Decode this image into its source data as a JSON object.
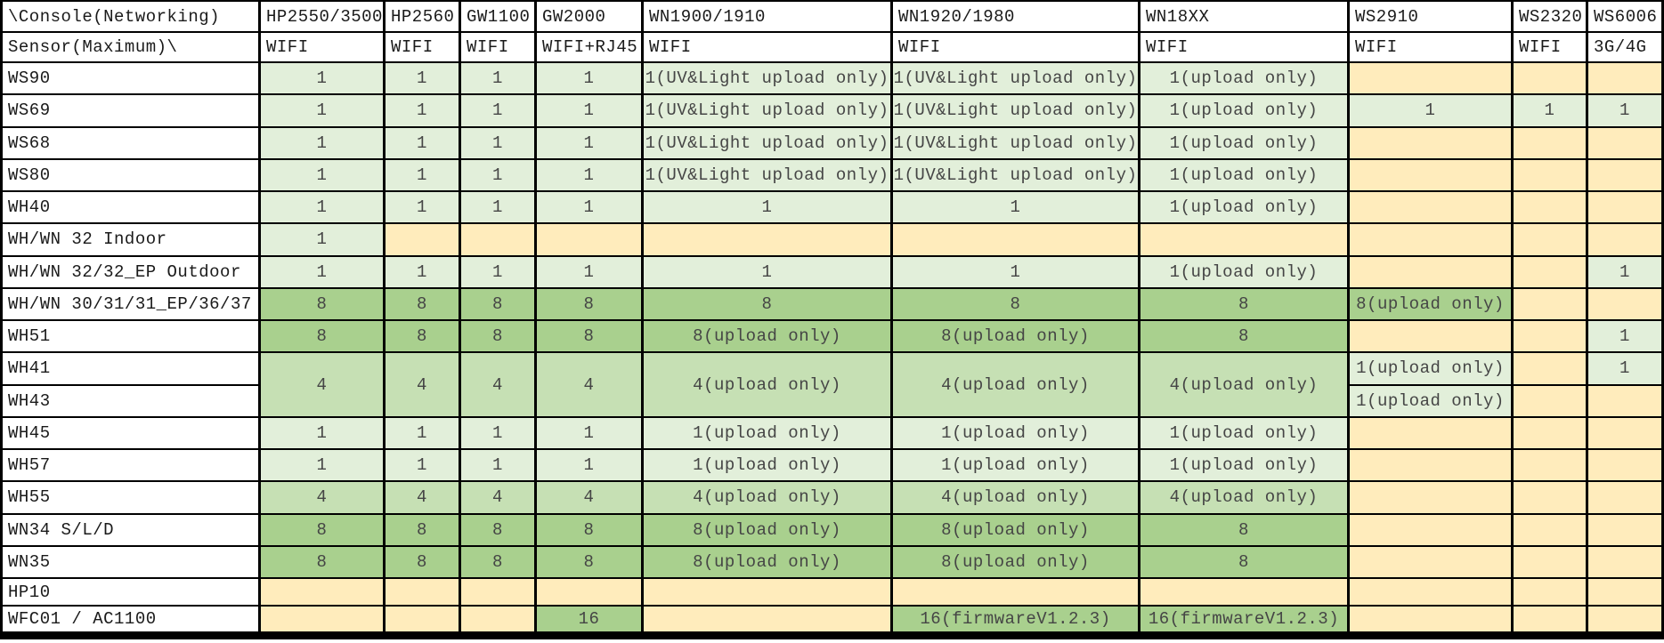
{
  "colors": {
    "g": "#e2efda",
    "m": "#c6e0b4",
    "d": "#a9d08e",
    "y": "#ffecbc",
    "header_bg": "#ffffff",
    "border": "#000000",
    "value_text": "#454545",
    "header_text": "#1a1a1a"
  },
  "table": {
    "corner": {
      "row1": "\\Console(Networking)",
      "row2": "Sensor(Maximum)\\"
    },
    "columns": [
      {
        "label": "HP2550/3500",
        "network": "WIFI"
      },
      {
        "label": "HP2560",
        "network": "WIFI"
      },
      {
        "label": "GW1100",
        "network": "WIFI"
      },
      {
        "label": "GW2000",
        "network": "WIFI+RJ45"
      },
      {
        "label": "WN1900/1910",
        "network": "WIFI"
      },
      {
        "label": "WN1920/1980",
        "network": "WIFI"
      },
      {
        "label": "WN18XX",
        "network": "WIFI"
      },
      {
        "label": "WS2910",
        "network": "WIFI"
      },
      {
        "label": "WS2320",
        "network": "WIFI"
      },
      {
        "label": "WS6006",
        "network": "3G/4G"
      }
    ],
    "rows": [
      {
        "sensor": "WS90",
        "cells": [
          {
            "t": "1",
            "s": "g"
          },
          {
            "t": "1",
            "s": "g"
          },
          {
            "t": "1",
            "s": "g"
          },
          {
            "t": "1",
            "s": "g"
          },
          {
            "t": "1(UV&Light upload only)",
            "s": "g"
          },
          {
            "t": "1(UV&Light upload only)",
            "s": "g"
          },
          {
            "t": "1(upload only)",
            "s": "g"
          },
          {
            "s": "y"
          },
          {
            "s": "y"
          },
          {
            "s": "y"
          }
        ]
      },
      {
        "sensor": "WS69",
        "cells": [
          {
            "t": "1",
            "s": "g"
          },
          {
            "t": "1",
            "s": "g"
          },
          {
            "t": "1",
            "s": "g"
          },
          {
            "t": "1",
            "s": "g"
          },
          {
            "t": "1(UV&Light upload only)",
            "s": "g"
          },
          {
            "t": "1(UV&Light upload only)",
            "s": "g"
          },
          {
            "t": "1(upload only)",
            "s": "g"
          },
          {
            "t": "1",
            "s": "g"
          },
          {
            "t": "1",
            "s": "g"
          },
          {
            "t": "1",
            "s": "g"
          }
        ]
      },
      {
        "sensor": "WS68",
        "cells": [
          {
            "t": "1",
            "s": "g"
          },
          {
            "t": "1",
            "s": "g"
          },
          {
            "t": "1",
            "s": "g"
          },
          {
            "t": "1",
            "s": "g"
          },
          {
            "t": "1(UV&Light upload only)",
            "s": "g"
          },
          {
            "t": "1(UV&Light upload only)",
            "s": "g"
          },
          {
            "t": "1(upload only)",
            "s": "g"
          },
          {
            "s": "y"
          },
          {
            "s": "y"
          },
          {
            "s": "y"
          }
        ]
      },
      {
        "sensor": "WS80",
        "cells": [
          {
            "t": "1",
            "s": "g"
          },
          {
            "t": "1",
            "s": "g"
          },
          {
            "t": "1",
            "s": "g"
          },
          {
            "t": "1",
            "s": "g"
          },
          {
            "t": "1(UV&Light upload only)",
            "s": "g"
          },
          {
            "t": "1(UV&Light upload only)",
            "s": "g"
          },
          {
            "t": "1(upload only)",
            "s": "g"
          },
          {
            "s": "y"
          },
          {
            "s": "y"
          },
          {
            "s": "y"
          }
        ]
      },
      {
        "sensor": "WH40",
        "cells": [
          {
            "t": "1",
            "s": "g"
          },
          {
            "t": "1",
            "s": "g"
          },
          {
            "t": "1",
            "s": "g"
          },
          {
            "t": "1",
            "s": "g"
          },
          {
            "t": "1",
            "s": "g"
          },
          {
            "t": "1",
            "s": "g"
          },
          {
            "t": "1(upload only)",
            "s": "g"
          },
          {
            "s": "y"
          },
          {
            "s": "y"
          },
          {
            "s": "y"
          }
        ]
      },
      {
        "sensor": "WH/WN 32 Indoor",
        "cells": [
          {
            "t": "1",
            "s": "g"
          },
          {
            "s": "y"
          },
          {
            "s": "y"
          },
          {
            "s": "y"
          },
          {
            "s": "y"
          },
          {
            "s": "y"
          },
          {
            "s": "y"
          },
          {
            "s": "y"
          },
          {
            "s": "y"
          },
          {
            "s": "y"
          }
        ]
      },
      {
        "sensor": "WH/WN 32/32_EP Outdoor",
        "cells": [
          {
            "t": "1",
            "s": "g"
          },
          {
            "t": "1",
            "s": "g"
          },
          {
            "t": "1",
            "s": "g"
          },
          {
            "t": "1",
            "s": "g"
          },
          {
            "t": "1",
            "s": "g"
          },
          {
            "t": "1",
            "s": "g"
          },
          {
            "t": "1(upload only)",
            "s": "g"
          },
          {
            "s": "y"
          },
          {
            "s": "y"
          },
          {
            "t": "1",
            "s": "g"
          }
        ]
      },
      {
        "sensor": "WH/WN 30/31/31_EP/36/37",
        "cells": [
          {
            "t": "8",
            "s": "d"
          },
          {
            "t": "8",
            "s": "d"
          },
          {
            "t": "8",
            "s": "d"
          },
          {
            "t": "8",
            "s": "d"
          },
          {
            "t": "8",
            "s": "d"
          },
          {
            "t": "8",
            "s": "d"
          },
          {
            "t": "8",
            "s": "d"
          },
          {
            "t": "8(upload only)",
            "s": "d"
          },
          {
            "s": "y"
          },
          {
            "s": "y"
          }
        ]
      },
      {
        "sensor": "WH51",
        "cells": [
          {
            "t": "8",
            "s": "d"
          },
          {
            "t": "8",
            "s": "d"
          },
          {
            "t": "8",
            "s": "d"
          },
          {
            "t": "8",
            "s": "d"
          },
          {
            "t": "8(upload only)",
            "s": "d"
          },
          {
            "t": "8(upload only)",
            "s": "d"
          },
          {
            "t": "8",
            "s": "d"
          },
          {
            "s": "y"
          },
          {
            "s": "y"
          },
          {
            "t": "1",
            "s": "g"
          }
        ]
      },
      {
        "sensor": "WH41",
        "cells": [
          {
            "t": "4",
            "s": "m",
            "rs": 2
          },
          {
            "t": "4",
            "s": "m",
            "rs": 2
          },
          {
            "t": "4",
            "s": "m",
            "rs": 2
          },
          {
            "t": "4",
            "s": "m",
            "rs": 2
          },
          {
            "t": "4(upload only)",
            "s": "m",
            "rs": 2
          },
          {
            "t": "4(upload only)",
            "s": "m",
            "rs": 2
          },
          {
            "t": "4(upload only)",
            "s": "m",
            "rs": 2
          },
          {
            "t": "1(upload only)",
            "s": "g"
          },
          {
            "s": "y"
          },
          {
            "t": "1",
            "s": "g"
          }
        ]
      },
      {
        "sensor": "WH43",
        "cells": [
          {
            "t": "1(upload only)",
            "s": "g"
          },
          {
            "s": "y"
          },
          {
            "s": "y"
          }
        ]
      },
      {
        "sensor": "WH45",
        "cells": [
          {
            "t": "1",
            "s": "g"
          },
          {
            "t": "1",
            "s": "g"
          },
          {
            "t": "1",
            "s": "g"
          },
          {
            "t": "1",
            "s": "g"
          },
          {
            "t": "1(upload only)",
            "s": "g"
          },
          {
            "t": "1(upload only)",
            "s": "g"
          },
          {
            "t": "1(upload only)",
            "s": "g"
          },
          {
            "s": "y"
          },
          {
            "s": "y"
          },
          {
            "s": "y"
          }
        ]
      },
      {
        "sensor": "WH57",
        "cells": [
          {
            "t": "1",
            "s": "g"
          },
          {
            "t": "1",
            "s": "g"
          },
          {
            "t": "1",
            "s": "g"
          },
          {
            "t": "1",
            "s": "g"
          },
          {
            "t": "1(upload only)",
            "s": "g"
          },
          {
            "t": "1(upload only)",
            "s": "g"
          },
          {
            "t": "1(upload only)",
            "s": "g"
          },
          {
            "s": "y"
          },
          {
            "s": "y"
          },
          {
            "s": "y"
          }
        ]
      },
      {
        "sensor": "WH55",
        "cells": [
          {
            "t": "4",
            "s": "m"
          },
          {
            "t": "4",
            "s": "m"
          },
          {
            "t": "4",
            "s": "m"
          },
          {
            "t": "4",
            "s": "m"
          },
          {
            "t": "4(upload only)",
            "s": "m"
          },
          {
            "t": "4(upload only)",
            "s": "m"
          },
          {
            "t": "4(upload only)",
            "s": "m"
          },
          {
            "s": "y"
          },
          {
            "s": "y"
          },
          {
            "s": "y"
          }
        ]
      },
      {
        "sensor": "WN34 S/L/D",
        "cells": [
          {
            "t": "8",
            "s": "d"
          },
          {
            "t": "8",
            "s": "d"
          },
          {
            "t": "8",
            "s": "d"
          },
          {
            "t": "8",
            "s": "d"
          },
          {
            "t": "8(upload only)",
            "s": "d"
          },
          {
            "t": "8(upload only)",
            "s": "d"
          },
          {
            "t": "8",
            "s": "d"
          },
          {
            "s": "y"
          },
          {
            "s": "y"
          },
          {
            "s": "y"
          }
        ]
      },
      {
        "sensor": "WN35",
        "cells": [
          {
            "t": "8",
            "s": "d"
          },
          {
            "t": "8",
            "s": "d"
          },
          {
            "t": "8",
            "s": "d"
          },
          {
            "t": "8",
            "s": "d"
          },
          {
            "t": "8(upload only)",
            "s": "d"
          },
          {
            "t": "8(upload only)",
            "s": "d"
          },
          {
            "t": "8",
            "s": "d"
          },
          {
            "s": "y"
          },
          {
            "s": "y"
          },
          {
            "s": "y"
          }
        ]
      },
      {
        "sensor": "HP10",
        "cells": [
          {
            "s": "y"
          },
          {
            "s": "y"
          },
          {
            "s": "y"
          },
          {
            "s": "y"
          },
          {
            "s": "y"
          },
          {
            "s": "y"
          },
          {
            "s": "y"
          },
          {
            "s": "y"
          },
          {
            "s": "y"
          },
          {
            "s": "y"
          }
        ]
      },
      {
        "sensor": "WFC01 / AC1100",
        "cells": [
          {
            "s": "y"
          },
          {
            "s": "y"
          },
          {
            "s": "y"
          },
          {
            "t": "16",
            "s": "d"
          },
          {
            "s": "y"
          },
          {
            "t": "16(firmwareV1.2.3)",
            "s": "d"
          },
          {
            "t": "16(firmwareV1.2.3)",
            "s": "d"
          },
          {
            "s": "y"
          },
          {
            "s": "y"
          },
          {
            "s": "y"
          }
        ]
      }
    ]
  }
}
